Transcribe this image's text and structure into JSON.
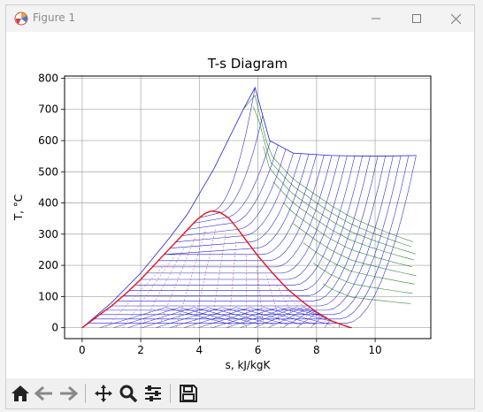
{
  "window": {
    "title": "Figure 1",
    "controls": [
      "minimize",
      "maximize",
      "close"
    ]
  },
  "toolbar": {
    "buttons": [
      "home-icon",
      "back-arrow-icon",
      "forward-arrow-icon",
      "pan-move-icon",
      "zoom-magnifier-icon",
      "configure-subplots-icon",
      "save-floppy-icon"
    ]
  },
  "colors": {
    "saturation_dome": "#e8141c",
    "isobars": "#2222d0",
    "constant_volume": "#2e8b2e",
    "constant_enthalpy": "#d04040",
    "grid": "#b0b0b0"
  },
  "chart_data": {
    "type": "line",
    "title": "T-s Diagram",
    "xlabel": "s, kJ/kgK",
    "ylabel": "T, °C",
    "xlim": [
      -0.6,
      11.9
    ],
    "ylim": [
      -35,
      807
    ],
    "xticks": [
      0,
      2,
      4,
      6,
      8,
      10
    ],
    "yticks": [
      0,
      100,
      200,
      300,
      400,
      500,
      600,
      700,
      800
    ],
    "grid": true,
    "legend": "none",
    "series": [
      {
        "kind": "saturation-dome",
        "x": [
          0,
          0.5,
          1.0,
          1.5,
          2.0,
          2.5,
          3.0,
          3.5,
          3.9,
          4.2,
          4.41,
          4.7,
          5.0,
          5.3,
          5.6,
          6.0,
          6.5,
          7.0,
          7.5,
          8.0,
          8.5,
          9.16
        ],
        "y": [
          0,
          35,
          70,
          110,
          155,
          205,
          255,
          305,
          345,
          367,
          374,
          370,
          352,
          318,
          280,
          230,
          175,
          125,
          85,
          50,
          22,
          0
        ]
      },
      {
        "kind": "isobar-envelope",
        "x": [
          0,
          1,
          2,
          3,
          3.6,
          4.5,
          5.5,
          5.9,
          6.4,
          7.2,
          8.5,
          10.0,
          11.4
        ],
        "y": [
          0,
          80,
          175,
          290,
          365,
          510,
          700,
          770,
          600,
          560,
          552,
          550,
          552
        ]
      }
    ]
  }
}
